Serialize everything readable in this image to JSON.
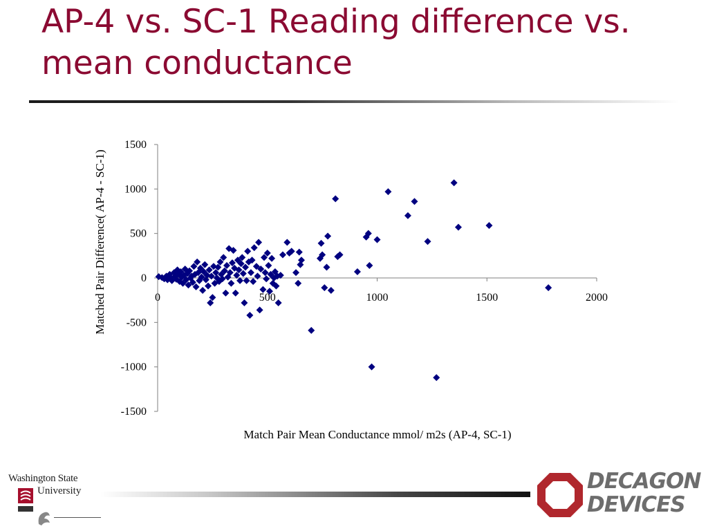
{
  "slide": {
    "title": "AP-4 vs. SC-1 Reading difference vs. mean conductance"
  },
  "branding": {
    "wsu_name": "Washington State",
    "wsu_sub": "University",
    "company_line1": "DECAGON",
    "company_line2": "DEVICES",
    "wsu_color": "#a60f2d",
    "decagon_color": "#b0272d"
  },
  "chart_data": {
    "type": "scatter",
    "title": "",
    "xlabel": "Match Pair Mean Conductance mmol/ m2s (AP-4, SC-1)",
    "ylabel": "Matched Pair Difference( AP-4 - SC-1)",
    "xlim": [
      0,
      2000
    ],
    "ylim": [
      -1500,
      1500
    ],
    "x_ticks": [
      "0",
      "500",
      "1000",
      "1500",
      "2000"
    ],
    "y_ticks": [
      "1500",
      "1000",
      "500",
      "0",
      "-500",
      "-1000",
      "-1500"
    ],
    "grid": false,
    "legend": "none",
    "marker": "diamond",
    "color": "#000080",
    "series": [
      {
        "points": [
          [
            5,
            15
          ],
          [
            20,
            5
          ],
          [
            30,
            -10
          ],
          [
            40,
            20
          ],
          [
            45,
            -20
          ],
          [
            55,
            40
          ],
          [
            60,
            0
          ],
          [
            65,
            -30
          ],
          [
            75,
            60
          ],
          [
            80,
            20
          ],
          [
            85,
            -15
          ],
          [
            90,
            90
          ],
          [
            95,
            40
          ],
          [
            100,
            -40
          ],
          [
            105,
            70
          ],
          [
            110,
            10
          ],
          [
            115,
            -60
          ],
          [
            120,
            30
          ],
          [
            125,
            100
          ],
          [
            130,
            -20
          ],
          [
            135,
            50
          ],
          [
            140,
            -80
          ],
          [
            145,
            80
          ],
          [
            150,
            0
          ],
          [
            155,
            20
          ],
          [
            160,
            -50
          ],
          [
            165,
            130
          ],
          [
            170,
            40
          ],
          [
            175,
            -100
          ],
          [
            180,
            180
          ],
          [
            185,
            60
          ],
          [
            190,
            -30
          ],
          [
            195,
            110
          ],
          [
            200,
            10
          ],
          [
            205,
            -140
          ],
          [
            210,
            70
          ],
          [
            215,
            150
          ],
          [
            220,
            -20
          ],
          [
            225,
            30
          ],
          [
            230,
            -90
          ],
          [
            235,
            90
          ],
          [
            240,
            -280
          ],
          [
            245,
            20
          ],
          [
            250,
            -220
          ],
          [
            255,
            130
          ],
          [
            260,
            -60
          ],
          [
            265,
            60
          ],
          [
            270,
            0
          ],
          [
            275,
            120
          ],
          [
            280,
            -40
          ],
          [
            285,
            180
          ],
          [
            290,
            40
          ],
          [
            295,
            -10
          ],
          [
            300,
            230
          ],
          [
            305,
            80
          ],
          [
            310,
            -170
          ],
          [
            315,
            140
          ],
          [
            320,
            10
          ],
          [
            325,
            330
          ],
          [
            330,
            60
          ],
          [
            335,
            -60
          ],
          [
            340,
            170
          ],
          [
            345,
            310
          ],
          [
            350,
            110
          ],
          [
            355,
            -170
          ],
          [
            360,
            30
          ],
          [
            365,
            200
          ],
          [
            370,
            90
          ],
          [
            375,
            -30
          ],
          [
            380,
            160
          ],
          [
            385,
            230
          ],
          [
            390,
            50
          ],
          [
            395,
            -280
          ],
          [
            400,
            120
          ],
          [
            405,
            -30
          ],
          [
            410,
            300
          ],
          [
            415,
            180
          ],
          [
            420,
            -420
          ],
          [
            425,
            60
          ],
          [
            430,
            200
          ],
          [
            435,
            -40
          ],
          [
            440,
            340
          ],
          [
            450,
            130
          ],
          [
            455,
            20
          ],
          [
            460,
            400
          ],
          [
            465,
            -360
          ],
          [
            470,
            100
          ],
          [
            480,
            -130
          ],
          [
            485,
            230
          ],
          [
            490,
            60
          ],
          [
            495,
            -10
          ],
          [
            500,
            280
          ],
          [
            505,
            140
          ],
          [
            510,
            -150
          ],
          [
            515,
            40
          ],
          [
            520,
            220
          ],
          [
            525,
            -60
          ],
          [
            530,
            0
          ],
          [
            535,
            70
          ],
          [
            540,
            -90
          ],
          [
            545,
            20
          ],
          [
            550,
            -280
          ],
          [
            560,
            30
          ],
          [
            570,
            260
          ],
          [
            590,
            400
          ],
          [
            600,
            280
          ],
          [
            610,
            300
          ],
          [
            630,
            60
          ],
          [
            640,
            -60
          ],
          [
            645,
            290
          ],
          [
            650,
            150
          ],
          [
            655,
            200
          ],
          [
            700,
            -590
          ],
          [
            740,
            220
          ],
          [
            745,
            390
          ],
          [
            750,
            260
          ],
          [
            760,
            -110
          ],
          [
            770,
            120
          ],
          [
            775,
            470
          ],
          [
            790,
            -140
          ],
          [
            810,
            890
          ],
          [
            820,
            240
          ],
          [
            830,
            260
          ],
          [
            910,
            70
          ],
          [
            950,
            460
          ],
          [
            960,
            500
          ],
          [
            965,
            140
          ],
          [
            975,
            -1000
          ],
          [
            1000,
            430
          ],
          [
            1050,
            970
          ],
          [
            1140,
            700
          ],
          [
            1170,
            860
          ],
          [
            1230,
            410
          ],
          [
            1270,
            -1120
          ],
          [
            1350,
            1070
          ],
          [
            1370,
            570
          ],
          [
            1510,
            590
          ],
          [
            1780,
            -110
          ]
        ]
      }
    ]
  }
}
